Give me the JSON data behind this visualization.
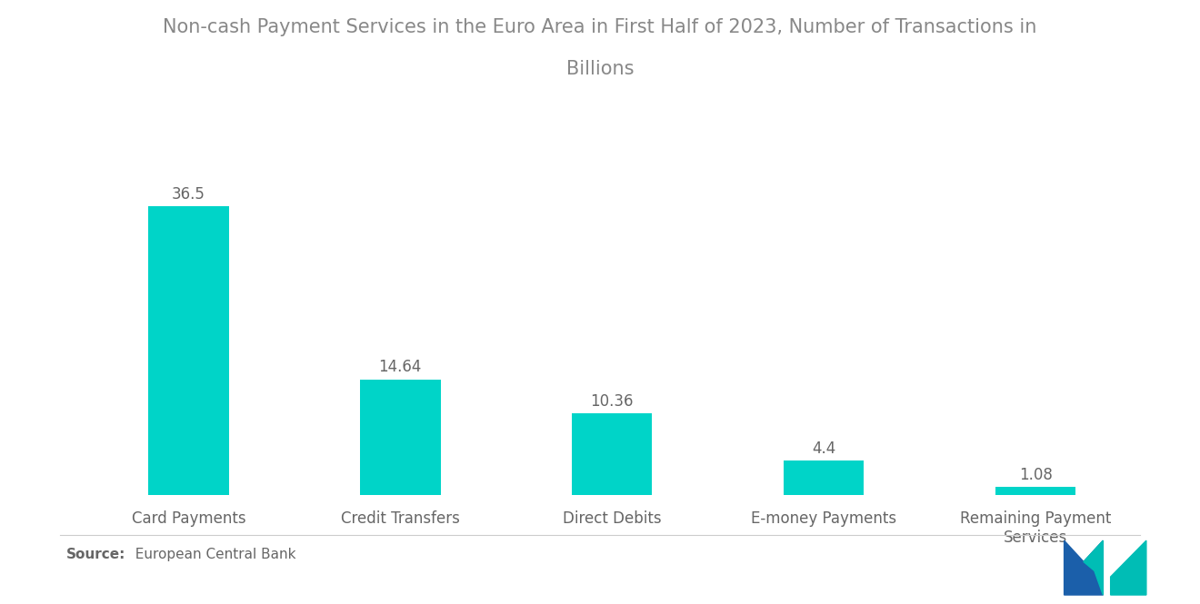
{
  "title_line1": "Non-cash Payment Services in the Euro Area in First Half of 2023, Number of Transactions in",
  "title_line2": "Billions",
  "categories": [
    "Card Payments",
    "Credit Transfers",
    "Direct Debits",
    "E-money Payments",
    "Remaining Payment\nServices"
  ],
  "values": [
    36.5,
    14.64,
    10.36,
    4.4,
    1.08
  ],
  "bar_color": "#00D4C8",
  "background_color": "#ffffff",
  "title_color": "#888888",
  "label_color": "#666666",
  "value_color": "#666666",
  "source_bold": "Source:",
  "source_normal": "  European Central Bank",
  "title_fontsize": 15,
  "label_fontsize": 12,
  "value_fontsize": 12,
  "source_fontsize": 11,
  "ylim": [
    0,
    42
  ],
  "bar_width": 0.38,
  "logo_blue": "#1B5FAA",
  "logo_teal": "#00BDB5"
}
